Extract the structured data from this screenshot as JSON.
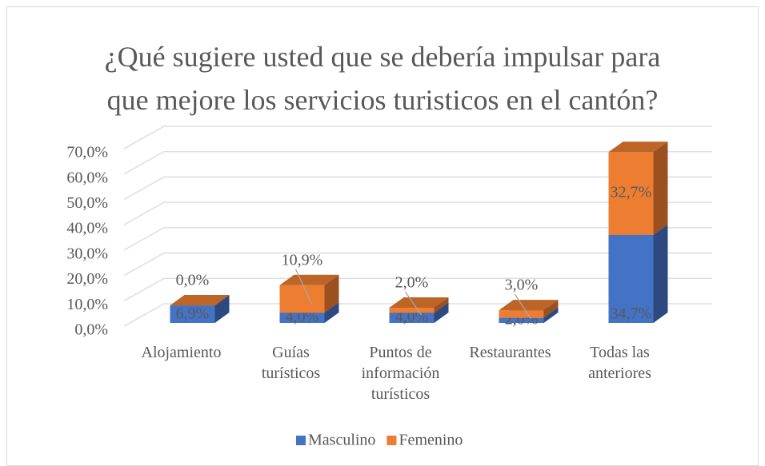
{
  "chart_data": {
    "type": "bar3d_stacked",
    "title": "¿Qué sugiere usted que se debería impulsar para que mejore los servicios turisticos en el cantón?",
    "categories": [
      "Alojamiento",
      "Guías turísticos",
      "Puntos de información turísticos",
      "Restaurantes",
      "Todas las anteriores"
    ],
    "series": [
      {
        "name": "Masculino",
        "color": "#4472c4",
        "values": [
          6.9,
          4.0,
          4.0,
          2.0,
          34.7
        ],
        "value_labels": [
          "6,9%",
          "4,0%",
          "4,0%",
          "2,0%",
          "34,7%"
        ]
      },
      {
        "name": "Femenino",
        "color": "#ed7d31",
        "values": [
          0.0,
          10.9,
          2.0,
          3.0,
          32.7
        ],
        "value_labels": [
          "0,0%",
          "10,9%",
          "2,0%",
          "3,0%",
          "32,7%"
        ]
      }
    ],
    "ylim": [
      0,
      70
    ],
    "yticks": [
      {
        "value": 0,
        "label": "0,0%"
      },
      {
        "value": 10,
        "label": "10,0%"
      },
      {
        "value": 20,
        "label": "20,0%"
      },
      {
        "value": 30,
        "label": "30,0%"
      },
      {
        "value": 40,
        "label": "40,0%"
      },
      {
        "value": 50,
        "label": "50,0%"
      },
      {
        "value": 60,
        "label": "60,0%"
      },
      {
        "value": 70,
        "label": "70,0%"
      }
    ],
    "grid": true,
    "legend": "bottom"
  }
}
